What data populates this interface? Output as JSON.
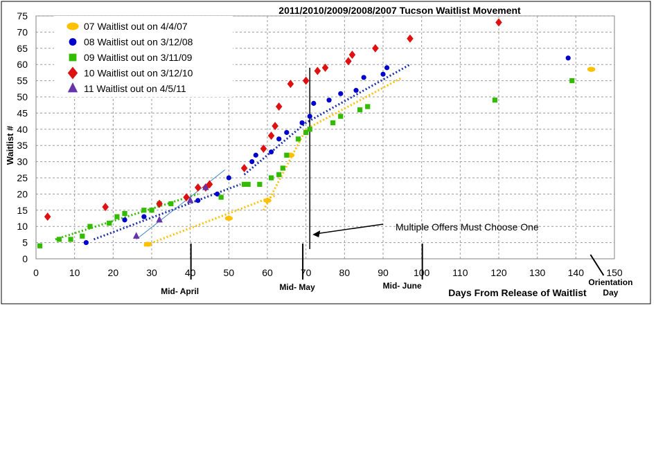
{
  "chart_data": {
    "type": "scatter",
    "title": "2011/2010/2009/2008/2007 Tucson Waitlist Movement",
    "xlabel": "Days From Release of Waitlist",
    "ylabel": "Waitlist #",
    "xlim": [
      0,
      150
    ],
    "ylim": [
      0,
      75
    ],
    "xticks": [
      0,
      10,
      20,
      30,
      40,
      50,
      60,
      70,
      80,
      90,
      100,
      110,
      120,
      130,
      140,
      150
    ],
    "yticks": [
      0,
      5,
      10,
      15,
      20,
      25,
      30,
      35,
      40,
      45,
      50,
      55,
      60,
      65,
      70,
      75
    ],
    "grid": true,
    "legend_position": "top-left",
    "series": [
      {
        "name": "07 Waitlist out on 4/4/07",
        "marker": "ellipse",
        "color": "#FFC000",
        "points": [
          [
            29,
            4.5
          ],
          [
            50,
            12.5
          ],
          [
            60,
            18
          ],
          [
            66,
            32
          ],
          [
            144,
            58.5
          ]
        ],
        "trend": [
          [
            [
              28,
              4
            ],
            [
              62,
              19.5
            ]
          ],
          [
            [
              59,
              15
            ],
            [
              70,
              40
            ],
            [
              95,
              56
            ]
          ]
        ]
      },
      {
        "name": "08 Waitlist out on 3/12/08",
        "marker": "circle",
        "color": "#0000CC",
        "points": [
          [
            13,
            5
          ],
          [
            23,
            12
          ],
          [
            28,
            13
          ],
          [
            42,
            18
          ],
          [
            47,
            20
          ],
          [
            50,
            25
          ],
          [
            56,
            30
          ],
          [
            57,
            32
          ],
          [
            61,
            33
          ],
          [
            63,
            37
          ],
          [
            65,
            39
          ],
          [
            69,
            42
          ],
          [
            71,
            44
          ],
          [
            72,
            48
          ],
          [
            76,
            49
          ],
          [
            79,
            51
          ],
          [
            83,
            52
          ],
          [
            85,
            56
          ],
          [
            90,
            57
          ],
          [
            91,
            59
          ],
          [
            138,
            62
          ]
        ],
        "trend": [
          [
            [
              15,
              6
            ],
            [
              53,
              23
            ]
          ],
          [
            [
              54,
              26
            ],
            [
              70,
              42
            ],
            [
              97,
              60
            ]
          ]
        ]
      },
      {
        "name": "09 Waitlist out on 3/11/09",
        "marker": "square",
        "color": "#33BB00",
        "points": [
          [
            1,
            4
          ],
          [
            6,
            6
          ],
          [
            9,
            6
          ],
          [
            12,
            7
          ],
          [
            14,
            10
          ],
          [
            19,
            11
          ],
          [
            21,
            13
          ],
          [
            23,
            14
          ],
          [
            28,
            15
          ],
          [
            30,
            15
          ],
          [
            32,
            17
          ],
          [
            35,
            17
          ],
          [
            48,
            19
          ],
          [
            54,
            23
          ],
          [
            55,
            23
          ],
          [
            58,
            23
          ],
          [
            61,
            25
          ],
          [
            63,
            26
          ],
          [
            64,
            28
          ],
          [
            65,
            32
          ],
          [
            68,
            37
          ],
          [
            70,
            39
          ],
          [
            71,
            40
          ],
          [
            77,
            42
          ],
          [
            79,
            44
          ],
          [
            84,
            46
          ],
          [
            86,
            47
          ],
          [
            119,
            49
          ],
          [
            139,
            55
          ]
        ],
        "trend": [
          [
            [
              5,
              6
            ],
            [
              42,
              20
            ]
          ]
        ]
      },
      {
        "name": "10 Waitlist out on 3/12/10",
        "marker": "diamond",
        "color": "#DD1111",
        "points": [
          [
            3,
            13
          ],
          [
            18,
            16
          ],
          [
            32,
            17
          ],
          [
            39,
            19
          ],
          [
            42,
            22
          ],
          [
            44,
            22
          ],
          [
            45,
            23
          ],
          [
            54,
            28
          ],
          [
            59,
            34
          ],
          [
            61,
            38
          ],
          [
            62,
            41
          ],
          [
            63,
            47
          ],
          [
            66,
            54
          ],
          [
            70,
            55
          ],
          [
            73,
            58
          ],
          [
            75,
            59
          ],
          [
            81,
            61
          ],
          [
            82,
            63
          ],
          [
            88,
            65
          ],
          [
            97,
            68
          ],
          [
            120,
            73
          ]
        ],
        "trend": []
      },
      {
        "name": "11 Waitlist out on 4/5/11",
        "marker": "triangle",
        "color": "#6633AA",
        "points": [
          [
            26,
            7
          ],
          [
            32,
            12
          ],
          [
            40,
            18
          ],
          [
            44,
            22
          ]
        ],
        "trend": [
          [
            [
              26,
              6
            ],
            [
              49,
              27.5
            ]
          ]
        ]
      }
    ],
    "annotations": [
      {
        "text": "Mid- April",
        "x": 40
      },
      {
        "text": "Mid- May",
        "x": 69
      },
      {
        "text": "Mid- June",
        "x": 100
      },
      {
        "text": "Orientation Day",
        "x": 149
      },
      {
        "text": "Multiple Offers Must Choose One",
        "x": 71
      }
    ]
  }
}
